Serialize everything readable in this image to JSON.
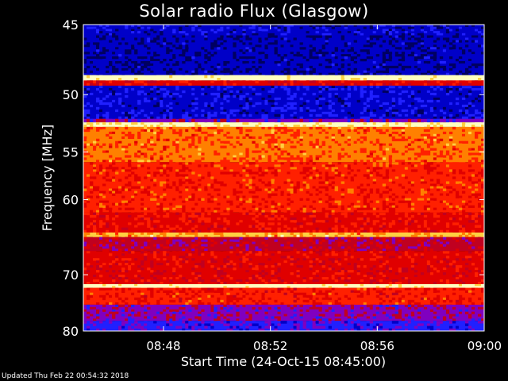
{
  "title": "Solar radio Flux (Glasgow)",
  "footer": "Updated Thu Feb 22 00:54:32 2018",
  "chart_data": {
    "type": "heatmap",
    "title": "Solar radio Flux (Glasgow)",
    "xlabel": "Start Time (24-Oct-15 08:45:00)",
    "ylabel": "Frequency [MHz]",
    "x_unit": "time",
    "xlim": [
      "08:45",
      "09:00"
    ],
    "ylim": [
      45,
      80
    ],
    "x_ticks": [
      "08:48",
      "08:52",
      "08:56",
      "09:00"
    ],
    "y_ticks": [
      45,
      50,
      55,
      60,
      70,
      80
    ],
    "y_scale": "reciprocal",
    "colormap": [
      "#000060",
      "#0000c8",
      "#2020ff",
      "#8000c0",
      "#c00020",
      "#e00000",
      "#ff2000",
      "#ff8000",
      "#ffd040",
      "#ffffc0"
    ],
    "bands": [
      {
        "from": 45.0,
        "to": 45.7,
        "level": 0.15
      },
      {
        "from": 45.7,
        "to": 48.5,
        "level": 0.1
      },
      {
        "from": 48.5,
        "to": 48.9,
        "level": 0.98
      },
      {
        "from": 48.9,
        "to": 49.3,
        "level": 0.55
      },
      {
        "from": 49.3,
        "to": 52.0,
        "level": 0.18
      },
      {
        "from": 52.0,
        "to": 52.3,
        "level": 0.35
      },
      {
        "from": 52.3,
        "to": 52.7,
        "level": 0.92
      },
      {
        "from": 52.7,
        "to": 56.0,
        "level": 0.7
      },
      {
        "from": 56.0,
        "to": 61.5,
        "level": 0.62
      },
      {
        "from": 61.5,
        "to": 64.0,
        "level": 0.58
      },
      {
        "from": 64.0,
        "to": 64.6,
        "level": 0.8
      },
      {
        "from": 64.6,
        "to": 66.5,
        "level": 0.45
      },
      {
        "from": 66.5,
        "to": 71.5,
        "level": 0.55
      },
      {
        "from": 71.5,
        "to": 72.1,
        "level": 0.97
      },
      {
        "from": 72.1,
        "to": 75.0,
        "level": 0.6
      },
      {
        "from": 75.0,
        "to": 78.0,
        "level": 0.38
      },
      {
        "from": 78.0,
        "to": 80.0,
        "level": 0.28
      }
    ]
  }
}
